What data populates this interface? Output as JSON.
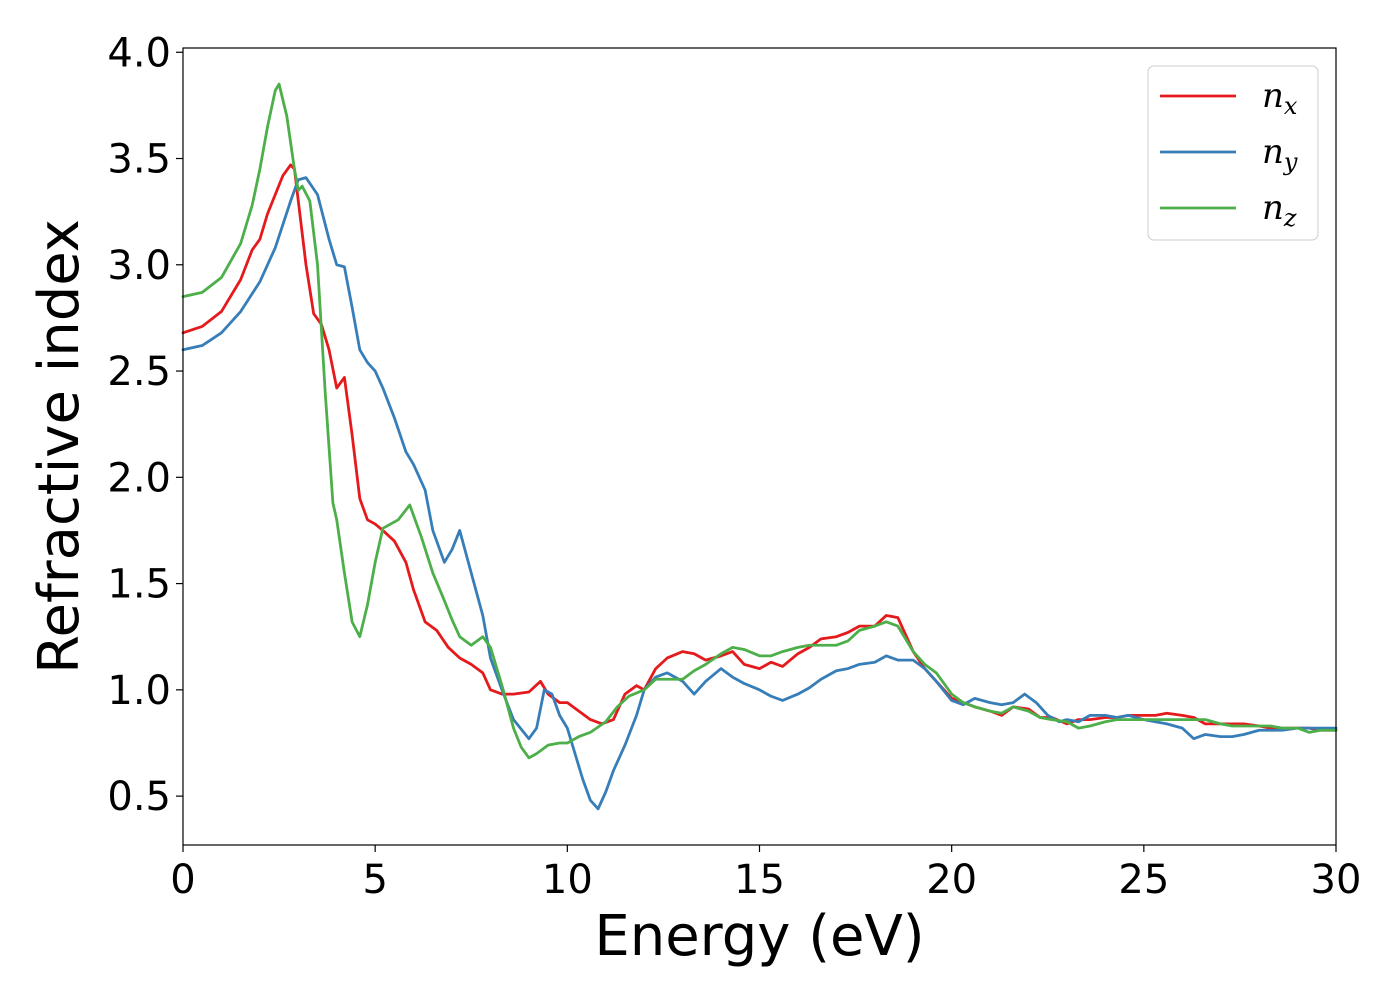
{
  "chart_data": {
    "type": "line",
    "title": "",
    "xlabel": "Energy (eV)",
    "ylabel": "Refractive index",
    "xlim": [
      0,
      30
    ],
    "ylim": [
      0.27,
      4.02
    ],
    "xticks": [
      0,
      5,
      10,
      15,
      20,
      25,
      30
    ],
    "yticks": [
      0.5,
      1.0,
      1.5,
      2.0,
      2.5,
      3.0,
      3.5,
      4.0
    ],
    "xtick_labels": [
      "0",
      "5",
      "10",
      "15",
      "20",
      "25",
      "30"
    ],
    "ytick_labels": [
      "0.5",
      "1.0",
      "1.5",
      "2.0",
      "2.5",
      "3.0",
      "3.5",
      "4.0"
    ],
    "grid": false,
    "legend_position": "top-right",
    "series": [
      {
        "name": "n",
        "subscript": "x",
        "color": "#e41a1c",
        "x": [
          0,
          0.5,
          1,
          1.5,
          1.8,
          2.0,
          2.2,
          2.4,
          2.6,
          2.8,
          2.9,
          3.0,
          3.2,
          3.4,
          3.6,
          3.8,
          4.0,
          4.2,
          4.4,
          4.6,
          4.8,
          5.0,
          5.2,
          5.5,
          5.8,
          6.0,
          6.3,
          6.6,
          6.9,
          7.2,
          7.5,
          7.8,
          8.0,
          8.3,
          8.6,
          9.0,
          9.3,
          9.5,
          9.8,
          10.0,
          10.3,
          10.6,
          10.9,
          11.2,
          11.5,
          11.8,
          12.0,
          12.3,
          12.6,
          13.0,
          13.3,
          13.6,
          14.0,
          14.3,
          14.6,
          15.0,
          15.3,
          15.6,
          16.0,
          16.3,
          16.6,
          17.0,
          17.3,
          17.6,
          18.0,
          18.3,
          18.6,
          19.0,
          19.3,
          19.6,
          20.0,
          20.3,
          20.6,
          21.0,
          21.3,
          21.6,
          22.0,
          22.3,
          22.6,
          23.0,
          23.3,
          23.6,
          24.0,
          24.3,
          24.6,
          25.0,
          25.3,
          25.6,
          26.0,
          26.3,
          26.6,
          27.0,
          27.3,
          27.6,
          28.0,
          28.3,
          28.6,
          29.0,
          29.3,
          29.6,
          30.0
        ],
        "y": [
          2.68,
          2.71,
          2.78,
          2.93,
          3.07,
          3.12,
          3.24,
          3.33,
          3.42,
          3.47,
          3.45,
          3.3,
          3.0,
          2.77,
          2.72,
          2.6,
          2.42,
          2.47,
          2.2,
          1.9,
          1.8,
          1.78,
          1.75,
          1.7,
          1.6,
          1.47,
          1.32,
          1.28,
          1.2,
          1.15,
          1.12,
          1.08,
          1.0,
          0.98,
          0.98,
          0.99,
          1.04,
          0.98,
          0.94,
          0.94,
          0.9,
          0.86,
          0.84,
          0.86,
          0.98,
          1.02,
          1.0,
          1.1,
          1.15,
          1.18,
          1.17,
          1.14,
          1.16,
          1.18,
          1.12,
          1.1,
          1.13,
          1.11,
          1.17,
          1.2,
          1.24,
          1.25,
          1.27,
          1.3,
          1.3,
          1.35,
          1.34,
          1.18,
          1.1,
          1.04,
          0.96,
          0.94,
          0.92,
          0.9,
          0.88,
          0.92,
          0.91,
          0.87,
          0.87,
          0.84,
          0.86,
          0.86,
          0.87,
          0.87,
          0.88,
          0.88,
          0.88,
          0.89,
          0.88,
          0.87,
          0.84,
          0.84,
          0.84,
          0.84,
          0.83,
          0.82,
          0.82,
          0.82,
          0.82,
          0.81,
          0.81
        ]
      },
      {
        "name": "n",
        "subscript": "y",
        "color": "#377eb8",
        "x": [
          0,
          0.5,
          1,
          1.5,
          2.0,
          2.4,
          2.8,
          3.0,
          3.2,
          3.5,
          3.8,
          4.0,
          4.2,
          4.4,
          4.6,
          4.8,
          5.0,
          5.2,
          5.5,
          5.8,
          6.0,
          6.3,
          6.5,
          6.8,
          7.0,
          7.2,
          7.5,
          7.8,
          8.0,
          8.3,
          8.6,
          9.0,
          9.2,
          9.4,
          9.6,
          9.8,
          10.0,
          10.2,
          10.4,
          10.6,
          10.8,
          11.0,
          11.2,
          11.5,
          11.8,
          12.0,
          12.3,
          12.6,
          13.0,
          13.3,
          13.6,
          14.0,
          14.3,
          14.6,
          15.0,
          15.3,
          15.6,
          16.0,
          16.3,
          16.6,
          17.0,
          17.3,
          17.6,
          18.0,
          18.3,
          18.6,
          19.0,
          19.3,
          19.6,
          20.0,
          20.3,
          20.6,
          21.0,
          21.3,
          21.6,
          21.9,
          22.2,
          22.5,
          22.8,
          23.0,
          23.3,
          23.6,
          24.0,
          24.3,
          24.6,
          25.0,
          25.3,
          25.6,
          26.0,
          26.3,
          26.6,
          27.0,
          27.3,
          27.6,
          28.0,
          28.3,
          28.6,
          29.0,
          29.3,
          29.6,
          30.0
        ],
        "y": [
          2.6,
          2.62,
          2.68,
          2.78,
          2.92,
          3.08,
          3.3,
          3.4,
          3.41,
          3.33,
          3.12,
          3.0,
          2.99,
          2.8,
          2.6,
          2.54,
          2.5,
          2.42,
          2.28,
          2.12,
          2.06,
          1.94,
          1.75,
          1.6,
          1.66,
          1.75,
          1.55,
          1.35,
          1.15,
          1.0,
          0.86,
          0.77,
          0.82,
          1.0,
          0.98,
          0.88,
          0.82,
          0.7,
          0.58,
          0.48,
          0.44,
          0.52,
          0.62,
          0.74,
          0.88,
          1.0,
          1.06,
          1.08,
          1.04,
          0.98,
          1.04,
          1.1,
          1.06,
          1.03,
          1.0,
          0.97,
          0.95,
          0.98,
          1.01,
          1.05,
          1.09,
          1.1,
          1.12,
          1.13,
          1.16,
          1.14,
          1.14,
          1.1,
          1.04,
          0.95,
          0.93,
          0.96,
          0.94,
          0.93,
          0.94,
          0.98,
          0.94,
          0.88,
          0.85,
          0.86,
          0.85,
          0.88,
          0.88,
          0.87,
          0.88,
          0.86,
          0.85,
          0.84,
          0.82,
          0.77,
          0.79,
          0.78,
          0.78,
          0.79,
          0.81,
          0.81,
          0.81,
          0.82,
          0.82,
          0.82,
          0.82
        ]
      },
      {
        "name": "n",
        "subscript": "z",
        "color": "#4daf4a",
        "x": [
          0,
          0.5,
          1,
          1.5,
          1.8,
          2.0,
          2.2,
          2.4,
          2.5,
          2.7,
          2.9,
          3.0,
          3.1,
          3.3,
          3.5,
          3.7,
          3.9,
          4.0,
          4.2,
          4.4,
          4.6,
          4.8,
          5.0,
          5.2,
          5.4,
          5.6,
          5.9,
          6.2,
          6.5,
          6.8,
          7.0,
          7.2,
          7.5,
          7.8,
          8.0,
          8.3,
          8.6,
          8.8,
          9.0,
          9.2,
          9.5,
          9.8,
          10.0,
          10.3,
          10.6,
          11.0,
          11.3,
          11.6,
          12.0,
          12.3,
          12.6,
          13.0,
          13.3,
          13.6,
          14.0,
          14.3,
          14.6,
          15.0,
          15.3,
          15.6,
          16.0,
          16.3,
          16.6,
          17.0,
          17.3,
          17.6,
          18.0,
          18.3,
          18.6,
          19.0,
          19.3,
          19.6,
          20.0,
          20.3,
          20.6,
          21.0,
          21.3,
          21.6,
          22.0,
          22.3,
          22.6,
          23.0,
          23.3,
          23.6,
          24.0,
          24.3,
          24.6,
          25.0,
          25.3,
          25.6,
          26.0,
          26.3,
          26.6,
          27.0,
          27.3,
          27.6,
          28.0,
          28.3,
          28.6,
          29.0,
          29.3,
          29.6,
          30.0
        ],
        "y": [
          2.85,
          2.87,
          2.94,
          3.1,
          3.28,
          3.45,
          3.65,
          3.82,
          3.85,
          3.7,
          3.45,
          3.35,
          3.37,
          3.3,
          3.0,
          2.4,
          1.88,
          1.8,
          1.55,
          1.32,
          1.25,
          1.4,
          1.6,
          1.76,
          1.78,
          1.8,
          1.87,
          1.72,
          1.55,
          1.42,
          1.33,
          1.25,
          1.21,
          1.25,
          1.2,
          1.02,
          0.82,
          0.73,
          0.68,
          0.7,
          0.74,
          0.75,
          0.75,
          0.78,
          0.8,
          0.85,
          0.92,
          0.97,
          1.0,
          1.05,
          1.05,
          1.05,
          1.09,
          1.12,
          1.17,
          1.2,
          1.19,
          1.16,
          1.16,
          1.18,
          1.2,
          1.21,
          1.21,
          1.21,
          1.23,
          1.28,
          1.3,
          1.32,
          1.3,
          1.18,
          1.12,
          1.08,
          0.98,
          0.94,
          0.92,
          0.9,
          0.89,
          0.92,
          0.9,
          0.87,
          0.86,
          0.85,
          0.82,
          0.83,
          0.85,
          0.86,
          0.86,
          0.86,
          0.86,
          0.86,
          0.86,
          0.86,
          0.86,
          0.84,
          0.83,
          0.83,
          0.83,
          0.83,
          0.82,
          0.82,
          0.8,
          0.81,
          0.81
        ]
      }
    ]
  }
}
